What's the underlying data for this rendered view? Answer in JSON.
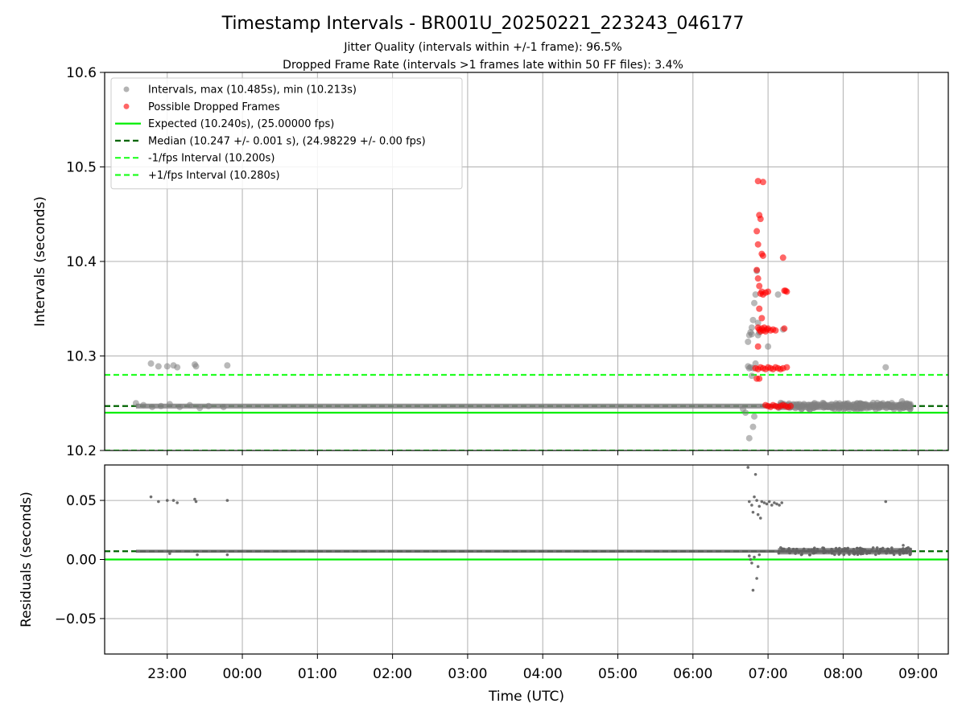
{
  "figure": {
    "title": "Timestamp Intervals - BR001U_20250221_223243_046177",
    "subtitle_1": "Jitter Quality (intervals within +/-1 frame): 96.5%",
    "subtitle_2": "Dropped Frame Rate (intervals >1 frames late within 50 FF files): 3.4%"
  },
  "colors": {
    "intervals": "#808080",
    "dropped": "#ff0000",
    "expected": "#00ee00",
    "median": "#006400",
    "fps_bounds": "#22ff22",
    "grid": "#b0b0b0"
  },
  "chart_data": [
    {
      "type": "scatter",
      "ylabel": "Intervals (seconds)",
      "ylim": [
        10.2,
        10.6
      ],
      "xlim": [
        "22:10",
        "09:24"
      ],
      "y_ticks": [
        "10.2",
        "10.3",
        "10.4",
        "10.5",
        "10.6"
      ],
      "grid": true,
      "legend_position": "top-left",
      "legend": [
        {
          "label": "Intervals, max (10.485s), min (10.213s)",
          "kind": "dot",
          "color": "#808080"
        },
        {
          "label": "Possible Dropped Frames",
          "kind": "dot",
          "color": "#ff0000"
        },
        {
          "label": "Expected (10.240s), (25.00000 fps)",
          "kind": "line",
          "color": "#00ee00"
        },
        {
          "label": "Median (10.247 +/- 0.001 s), (24.98229 +/- 0.00 fps)",
          "kind": "dash",
          "color": "#006400"
        },
        {
          "label": "-1/fps Interval (10.200s)",
          "kind": "dash",
          "color": "#22ff22"
        },
        {
          "label": "+1/fps Interval (10.280s)",
          "kind": "dash",
          "color": "#22ff22"
        }
      ],
      "reference_lines": [
        {
          "y": 10.24,
          "style": "solid",
          "color": "#00ee00"
        },
        {
          "y": 10.247,
          "style": "dash",
          "color": "#006400"
        },
        {
          "y": 10.2,
          "style": "dash",
          "color": "#22ff22"
        },
        {
          "y": 10.28,
          "style": "dash",
          "color": "#22ff22"
        }
      ],
      "series": [
        {
          "name": "Intervals, max (10.485s), min (10.213s)",
          "color": "#808080",
          "baseline": {
            "from": "22:35",
            "to": "08:55",
            "y": 10.247
          },
          "points": [
            [
              "22:35",
              10.25
            ],
            [
              "22:41",
              10.248
            ],
            [
              "22:48",
              10.246
            ],
            [
              "22:55",
              10.247
            ],
            [
              "23:02",
              10.249
            ],
            [
              "23:10",
              10.246
            ],
            [
              "23:18",
              10.248
            ],
            [
              "23:26",
              10.245
            ],
            [
              "23:33",
              10.247
            ],
            [
              "23:45",
              10.246
            ],
            [
              "22:47",
              10.292
            ],
            [
              "22:53",
              10.289
            ],
            [
              "23:00",
              10.289
            ],
            [
              "23:05",
              10.29
            ],
            [
              "23:08",
              10.288
            ],
            [
              "23:22",
              10.291
            ],
            [
              "23:23",
              10.289
            ],
            [
              "23:48",
              10.29
            ],
            [
              "06:40",
              10.244
            ],
            [
              "06:42",
              10.24
            ],
            [
              "06:44",
              10.289
            ],
            [
              "06:46",
              10.288
            ],
            [
              "06:48",
              10.287
            ],
            [
              "06:45",
              10.287
            ],
            [
              "06:47",
              10.279
            ],
            [
              "06:50",
              10.292
            ],
            [
              "06:45",
              10.213
            ],
            [
              "06:48",
              10.225
            ],
            [
              "06:49",
              10.236
            ],
            [
              "06:44",
              10.315
            ],
            [
              "06:45",
              10.322
            ],
            [
              "06:46",
              10.325
            ],
            [
              "06:47",
              10.33
            ],
            [
              "06:48",
              10.338
            ],
            [
              "06:49",
              10.356
            ],
            [
              "06:50",
              10.365
            ],
            [
              "06:51",
              10.39
            ],
            [
              "06:52",
              10.335
            ],
            [
              "06:53",
              10.325
            ],
            [
              "06:47",
              10.323
            ],
            [
              "06:52",
              10.322
            ],
            [
              "07:00",
              10.31
            ],
            [
              "07:08",
              10.365
            ],
            [
              "07:12",
              10.328
            ],
            [
              "07:10",
              10.248
            ],
            [
              "07:18",
              10.246
            ],
            [
              "07:25",
              10.249
            ],
            [
              "07:32",
              10.245
            ],
            [
              "07:40",
              10.247
            ],
            [
              "07:48",
              10.246
            ],
            [
              "07:55",
              10.248
            ],
            [
              "08:02",
              10.245
            ],
            [
              "08:10",
              10.247
            ],
            [
              "08:18",
              10.249
            ],
            [
              "08:25",
              10.246
            ],
            [
              "08:32",
              10.248
            ],
            [
              "08:40",
              10.246
            ],
            [
              "08:47",
              10.252
            ],
            [
              "08:52",
              10.249
            ],
            [
              "08:54",
              10.247
            ],
            [
              "08:34",
              10.288
            ]
          ]
        },
        {
          "name": "Possible Dropped Frames",
          "color": "#ff0000",
          "points": [
            [
              "06:52",
              10.485
            ],
            [
              "06:56",
              10.484
            ],
            [
              "06:53",
              10.449
            ],
            [
              "06:54",
              10.445
            ],
            [
              "06:51",
              10.432
            ],
            [
              "06:52",
              10.418
            ],
            [
              "06:55",
              10.408
            ],
            [
              "06:56",
              10.406
            ],
            [
              "07:12",
              10.404
            ],
            [
              "06:51",
              10.391
            ],
            [
              "06:52",
              10.382
            ],
            [
              "06:53",
              10.374
            ],
            [
              "06:54",
              10.366
            ],
            [
              "06:55",
              10.368
            ],
            [
              "06:56",
              10.365
            ],
            [
              "06:58",
              10.367
            ],
            [
              "07:00",
              10.368
            ],
            [
              "07:13",
              10.369
            ],
            [
              "07:14",
              10.369
            ],
            [
              "07:15",
              10.368
            ],
            [
              "06:55",
              10.34
            ],
            [
              "06:53",
              10.35
            ],
            [
              "06:52",
              10.33
            ],
            [
              "06:53",
              10.328
            ],
            [
              "06:54",
              10.326
            ],
            [
              "06:55",
              10.329
            ],
            [
              "06:56",
              10.327
            ],
            [
              "06:57",
              10.33
            ],
            [
              "06:58",
              10.326
            ],
            [
              "06:59",
              10.328
            ],
            [
              "07:00",
              10.329
            ],
            [
              "07:02",
              10.327
            ],
            [
              "07:04",
              10.328
            ],
            [
              "07:06",
              10.327
            ],
            [
              "07:13",
              10.329
            ],
            [
              "06:52",
              10.31
            ],
            [
              "06:50",
              10.287
            ],
            [
              "06:52",
              10.286
            ],
            [
              "06:54",
              10.288
            ],
            [
              "06:56",
              10.287
            ],
            [
              "06:58",
              10.286
            ],
            [
              "07:00",
              10.288
            ],
            [
              "07:02",
              10.287
            ],
            [
              "07:04",
              10.286
            ],
            [
              "07:06",
              10.288
            ],
            [
              "07:08",
              10.287
            ],
            [
              "07:10",
              10.286
            ],
            [
              "07:12",
              10.287
            ],
            [
              "07:15",
              10.288
            ],
            [
              "06:51",
              10.276
            ],
            [
              "06:53",
              10.276
            ],
            [
              "06:58",
              10.248
            ],
            [
              "07:00",
              10.247
            ],
            [
              "07:02",
              10.246
            ],
            [
              "07:04",
              10.248
            ],
            [
              "07:06",
              10.247
            ],
            [
              "07:08",
              10.246
            ],
            [
              "07:10",
              10.247
            ],
            [
              "07:12",
              10.248
            ],
            [
              "07:14",
              10.247
            ],
            [
              "07:16",
              10.246
            ],
            [
              "07:18",
              10.247
            ]
          ]
        }
      ]
    },
    {
      "type": "scatter",
      "ylabel": "Residuals (seconds)",
      "xlabel": "Time (UTC)",
      "ylim": [
        -0.08,
        0.08
      ],
      "xlim": [
        "22:10",
        "09:24"
      ],
      "y_ticks": [
        "−0.05",
        "0.00",
        "0.05"
      ],
      "x_ticks": [
        "23:00",
        "00:00",
        "01:00",
        "02:00",
        "03:00",
        "04:00",
        "05:00",
        "06:00",
        "07:00",
        "08:00",
        "09:00"
      ],
      "grid": true,
      "reference_lines": [
        {
          "y": 0.0,
          "style": "solid",
          "color": "#00ee00"
        },
        {
          "y": 0.007,
          "style": "dash",
          "color": "#006400"
        }
      ],
      "series": [
        {
          "name": "Residuals",
          "color": "#606060",
          "baseline": {
            "from": "22:35",
            "to": "08:55",
            "y": 0.007
          },
          "points": [
            [
              "22:47",
              0.053
            ],
            [
              "22:53",
              0.049
            ],
            [
              "23:00",
              0.05
            ],
            [
              "23:05",
              0.05
            ],
            [
              "23:08",
              0.048
            ],
            [
              "23:22",
              0.051
            ],
            [
              "23:23",
              0.049
            ],
            [
              "23:48",
              0.05
            ],
            [
              "23:02",
              0.005
            ],
            [
              "23:24",
              0.004
            ],
            [
              "23:48",
              0.004
            ],
            [
              "06:44",
              0.078
            ],
            [
              "06:50",
              0.072
            ],
            [
              "06:45",
              0.049
            ],
            [
              "06:47",
              0.046
            ],
            [
              "06:49",
              0.053
            ],
            [
              "06:51",
              0.05
            ],
            [
              "06:53",
              0.045
            ],
            [
              "06:55",
              0.049
            ],
            [
              "06:57",
              0.048
            ],
            [
              "06:59",
              0.047
            ],
            [
              "07:01",
              0.049
            ],
            [
              "07:03",
              0.046
            ],
            [
              "07:05",
              0.048
            ],
            [
              "07:07",
              0.047
            ],
            [
              "07:09",
              0.046
            ],
            [
              "07:11",
              0.048
            ],
            [
              "06:48",
              0.04
            ],
            [
              "06:52",
              0.038
            ],
            [
              "06:54",
              0.035
            ],
            [
              "06:45",
              0.003
            ],
            [
              "06:46",
              0.0
            ],
            [
              "06:47",
              -0.003
            ],
            [
              "06:51",
              -0.016
            ],
            [
              "06:52",
              -0.006
            ],
            [
              "06:48",
              -0.026
            ],
            [
              "06:49",
              0.002
            ],
            [
              "06:53",
              0.004
            ],
            [
              "08:34",
              0.049
            ],
            [
              "08:48",
              0.012
            ],
            [
              "08:52",
              0.01
            ]
          ]
        }
      ]
    }
  ]
}
